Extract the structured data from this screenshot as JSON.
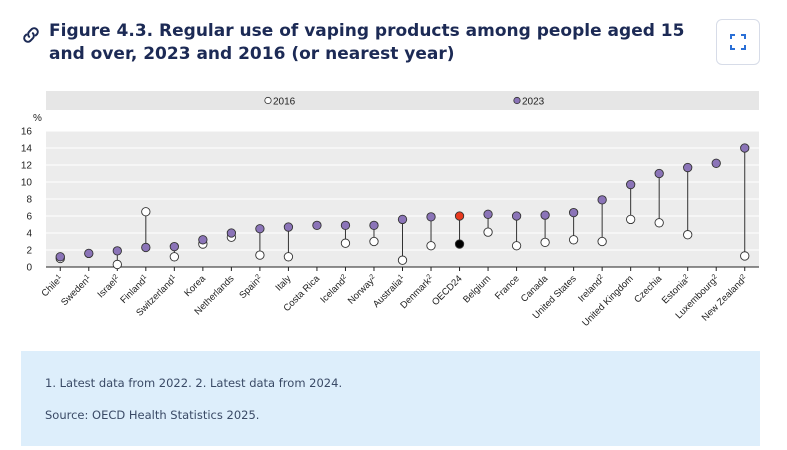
{
  "header": {
    "link_icon": "link-icon",
    "title": "Figure 4.3. Regular use of vaping products among people aged 15 and over, 2023 and 2016 (or nearest year)",
    "expand_icon": "expand-icon"
  },
  "colors": {
    "series_2023": "#8b74b8",
    "series_2016": "#ffffff",
    "oecd_2023": "#e8391e",
    "oecd_2016": "#000000",
    "legend_band": "#e6e6e6",
    "plot_band": "#ececec"
  },
  "chart_data": {
    "type": "scatter",
    "subtype": "dumbbell",
    "ylabel": "%",
    "ylim": [
      0,
      16
    ],
    "yticks": [
      0,
      2,
      4,
      6,
      8,
      10,
      12,
      14,
      16
    ],
    "grid": true,
    "legend_position": "top",
    "categories": [
      "Chile¹",
      "Sweden¹",
      "Israel²",
      "Finland¹",
      "Switzerland¹",
      "Korea",
      "Netherlands",
      "Spain²",
      "Italy",
      "Costa Rica",
      "Iceland²",
      "Norway²",
      "Australia¹",
      "Denmark²",
      "OECD24",
      "Belgium",
      "France",
      "Canada",
      "United States",
      "Ireland²",
      "United Kingdom",
      "Czechia",
      "Estonia²",
      "Luxembourg²",
      "New Zealand²"
    ],
    "series": [
      {
        "name": "2016",
        "values": [
          1.0,
          null,
          0.3,
          6.5,
          1.2,
          2.7,
          3.5,
          1.4,
          1.2,
          null,
          2.8,
          3.0,
          0.8,
          2.5,
          2.7,
          4.1,
          2.5,
          2.9,
          3.2,
          3.0,
          5.6,
          5.2,
          3.8,
          null,
          1.3
        ]
      },
      {
        "name": "2023",
        "values": [
          1.2,
          1.6,
          1.9,
          2.3,
          2.4,
          3.2,
          4.0,
          4.5,
          4.7,
          4.9,
          4.9,
          4.9,
          5.6,
          5.9,
          6.0,
          6.2,
          6.0,
          6.1,
          6.4,
          7.9,
          9.7,
          11.0,
          11.7,
          12.2,
          14.0
        ]
      }
    ],
    "highlight_category": "OECD24"
  },
  "notes": {
    "footnote": "1. Latest data from 2022. 2. Latest data from 2024.",
    "source": "Source: OECD Health Statistics 2025."
  }
}
